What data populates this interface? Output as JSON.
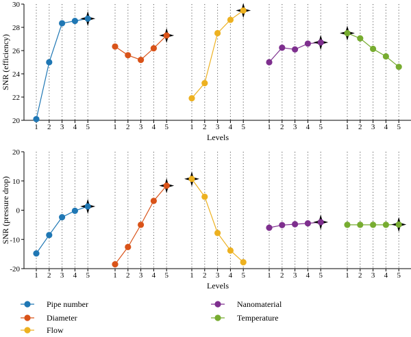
{
  "chart_data": [
    {
      "type": "line",
      "ylabel": "SNR (efficiency)",
      "xlabel": "Levels",
      "ylim": [
        20,
        30
      ],
      "yticks": [
        20,
        22,
        24,
        26,
        28,
        30
      ],
      "groups": [
        {
          "name": "Pipe number",
          "color": "#1f77b4",
          "x": [
            1,
            2,
            3,
            4,
            5
          ],
          "values": [
            20.1,
            25.0,
            28.35,
            28.55,
            28.75
          ],
          "optimal_level": 5
        },
        {
          "name": "Diameter",
          "color": "#d95319",
          "x": [
            1,
            2,
            3,
            4,
            5
          ],
          "values": [
            26.35,
            25.6,
            25.2,
            26.2,
            27.3
          ],
          "optimal_level": 5
        },
        {
          "name": "Flow",
          "color": "#edb120",
          "x": [
            1,
            2,
            3,
            4,
            5
          ],
          "values": [
            21.9,
            23.2,
            27.5,
            28.65,
            29.45
          ],
          "optimal_level": 5
        },
        {
          "name": "Nanomaterial",
          "color": "#7e2f8e",
          "x": [
            1,
            2,
            3,
            4,
            5
          ],
          "values": [
            25.0,
            26.25,
            26.1,
            26.6,
            26.7
          ],
          "optimal_level": 5
        },
        {
          "name": "Temperature",
          "color": "#77ac30",
          "x": [
            1,
            2,
            3,
            4,
            5
          ],
          "values": [
            27.5,
            27.05,
            26.15,
            25.5,
            24.6
          ],
          "optimal_level": 1
        }
      ]
    },
    {
      "type": "line",
      "ylabel": "SNR (pressure drop)",
      "xlabel": "Levels",
      "ylim": [
        -20,
        20
      ],
      "yticks": [
        -20,
        -10,
        0,
        10,
        20
      ],
      "groups": [
        {
          "name": "Pipe number",
          "color": "#1f77b4",
          "x": [
            1,
            2,
            3,
            4,
            5
          ],
          "values": [
            -14.8,
            -8.5,
            -2.4,
            -0.2,
            1.3
          ],
          "optimal_level": 5
        },
        {
          "name": "Diameter",
          "color": "#d95319",
          "x": [
            1,
            2,
            3,
            4,
            5
          ],
          "values": [
            -18.5,
            -12.6,
            -5.0,
            3.2,
            8.4
          ],
          "optimal_level": 5
        },
        {
          "name": "Flow",
          "color": "#edb120",
          "x": [
            1,
            2,
            3,
            4,
            5
          ],
          "values": [
            10.7,
            4.6,
            -7.8,
            -13.8,
            -17.8
          ],
          "optimal_level": 1
        },
        {
          "name": "Nanomaterial",
          "color": "#7e2f8e",
          "x": [
            1,
            2,
            3,
            4,
            5
          ],
          "values": [
            -6.0,
            -5.1,
            -4.8,
            -4.5,
            -4.1
          ],
          "optimal_level": 5
        },
        {
          "name": "Temperature",
          "color": "#77ac30",
          "x": [
            1,
            2,
            3,
            4,
            5
          ],
          "values": [
            -5.0,
            -5.0,
            -5.0,
            -5.0,
            -4.9
          ],
          "optimal_level": 5
        }
      ]
    }
  ],
  "legend": {
    "placement": "bottom",
    "entries": [
      {
        "label": "Pipe number",
        "color": "#1f77b4"
      },
      {
        "label": "Diameter",
        "color": "#d95319"
      },
      {
        "label": "Flow",
        "color": "#edb120"
      },
      {
        "label": "Nanomaterial",
        "color": "#7e2f8e"
      },
      {
        "label": "Temperature",
        "color": "#77ac30"
      }
    ]
  },
  "style": {
    "axis_color": "#000000",
    "guide_color": "#555555",
    "optimal_marker_color": "#000000"
  }
}
